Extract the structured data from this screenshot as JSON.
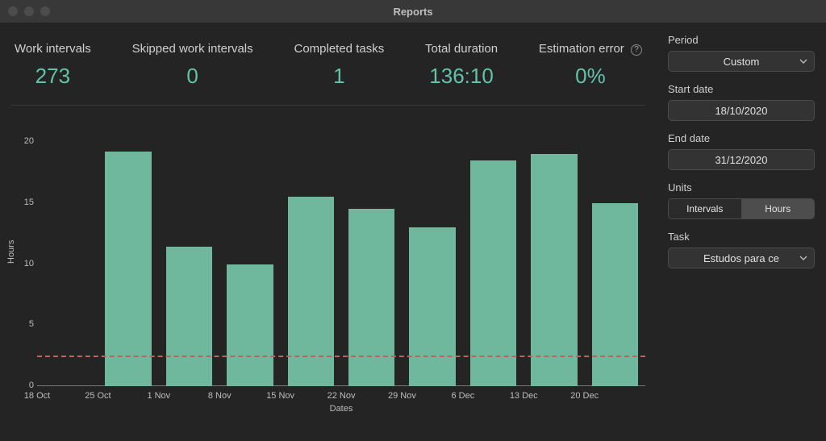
{
  "window": {
    "title": "Reports"
  },
  "metrics": {
    "work_intervals": {
      "label": "Work intervals",
      "value": "273"
    },
    "skipped_work_intervals": {
      "label": "Skipped work intervals",
      "value": "0"
    },
    "completed_tasks": {
      "label": "Completed tasks",
      "value": "1"
    },
    "total_duration": {
      "label": "Total duration",
      "value": "136:10"
    },
    "estimation_error": {
      "label": "Estimation error",
      "value": "0%"
    }
  },
  "sidebar": {
    "period": {
      "label": "Period",
      "value": "Custom"
    },
    "start_date": {
      "label": "Start date",
      "value": "18/10/2020"
    },
    "end_date": {
      "label": "End date",
      "value": "31/12/2020"
    },
    "units": {
      "label": "Units",
      "options": [
        "Intervals",
        "Hours"
      ],
      "selected": "Hours"
    },
    "task": {
      "label": "Task",
      "value": "Estudos para ce"
    }
  },
  "chart": {
    "type": "bar",
    "x_label": "Dates",
    "y_label": "Hours",
    "ylim": [
      0,
      21
    ],
    "yticks": [
      0,
      5,
      10,
      15,
      20
    ],
    "bar_color": "#6fb89e",
    "background_color": "#242424",
    "baseline_color": "#7a7a7a",
    "threshold_line": {
      "value": 2.4,
      "color": "#c26060",
      "dash": true
    },
    "label_fontsize": 11,
    "bar_width_ratio": 0.76,
    "categories": [
      "18 Oct",
      "25 Oct",
      "1 Nov",
      "8 Nov",
      "15 Nov",
      "22 Nov",
      "29 Nov",
      "6 Dec",
      "13 Dec",
      "20 Dec"
    ],
    "values": [
      0,
      19.2,
      11.4,
      10.0,
      15.5,
      14.5,
      13.0,
      18.5,
      19.0,
      15.0
    ]
  },
  "colors": {
    "accent": "#63c3a7",
    "text": "#cfcfcf",
    "panel": "#242424",
    "control_bg": "#333333",
    "control_border": "#4a4a4a"
  }
}
